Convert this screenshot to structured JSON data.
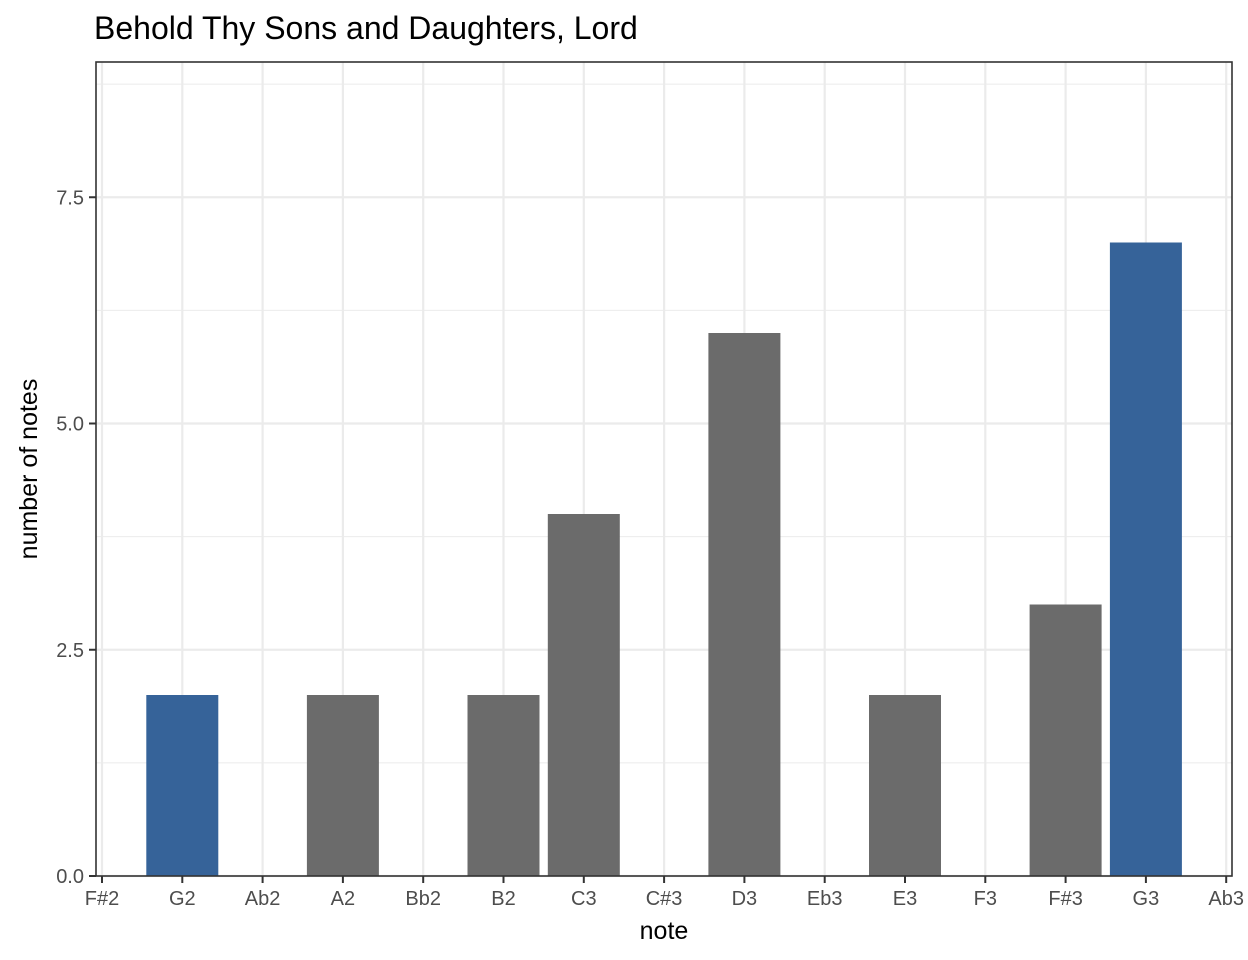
{
  "chart_data": {
    "type": "bar",
    "title": "Behold Thy Sons and Daughters, Lord",
    "xlabel": "note",
    "ylabel": "number of notes",
    "categories": [
      "F#2",
      "G2",
      "Ab2",
      "A2",
      "Bb2",
      "B2",
      "C3",
      "C#3",
      "D3",
      "Eb3",
      "E3",
      "F3",
      "F#3",
      "G3",
      "Ab3"
    ],
    "values": [
      0,
      2,
      0,
      2,
      0,
      2,
      4,
      0,
      6,
      0,
      2,
      0,
      3,
      7,
      0
    ],
    "highlight": [
      "G2",
      "G3"
    ],
    "colors": {
      "default": "#6b6b6b",
      "highlight": "#366399"
    },
    "ylim": [
      0,
      8.9
    ],
    "yticks": [
      0,
      2.5,
      5,
      7.5
    ],
    "ytick_labels": [
      "0.0",
      "2.5",
      "5.0",
      "7.5"
    ],
    "grid": true,
    "legend": "none"
  }
}
